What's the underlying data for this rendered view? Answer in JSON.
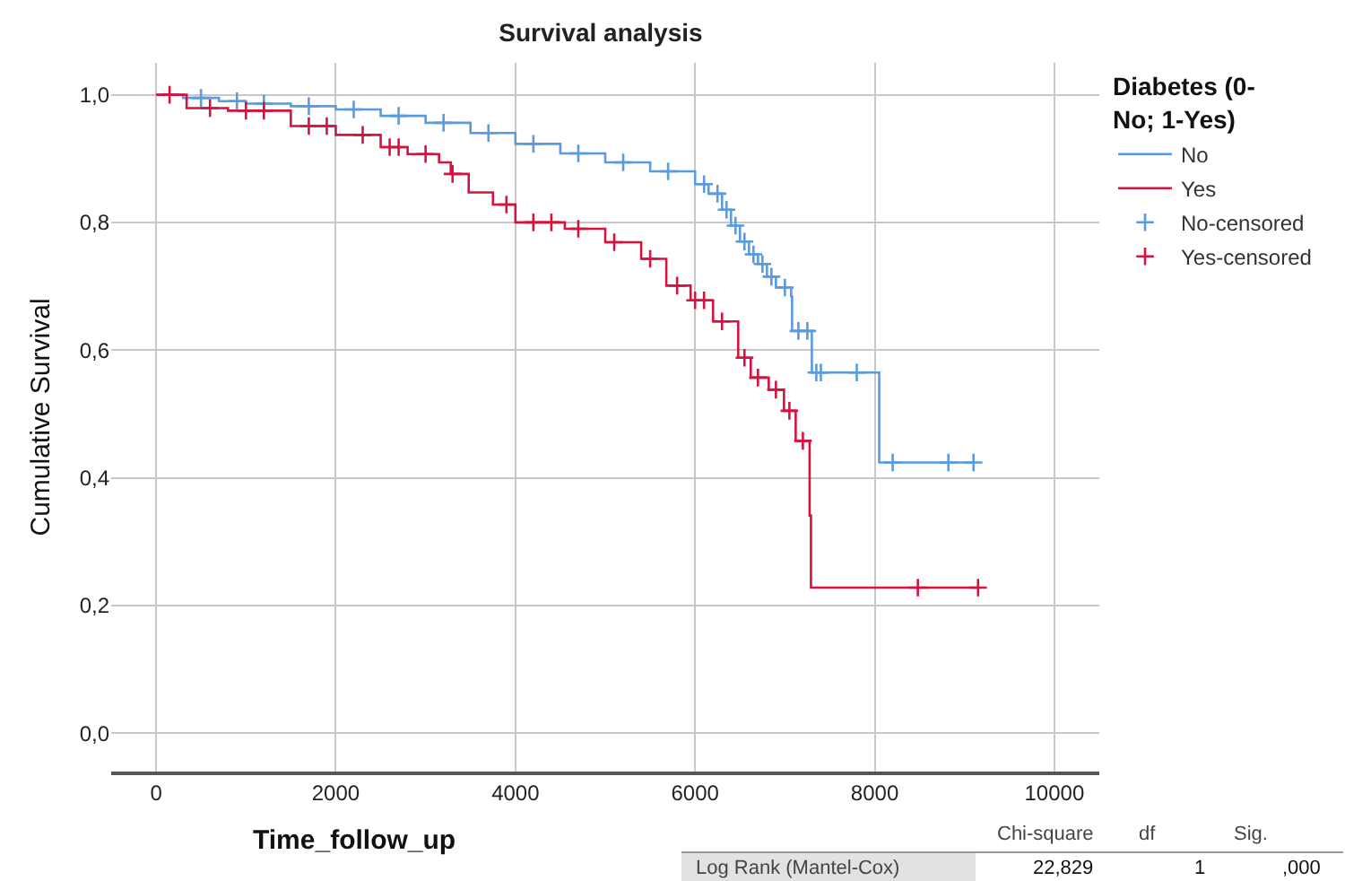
{
  "chart_data": {
    "type": "step",
    "title": "Survival analysis",
    "xlabel": "Time_follow_up",
    "ylabel": "Cumulative Survival",
    "legend_title": "Diabetes (0-No; 1-Yes)",
    "xlim": [
      -500,
      10500
    ],
    "xticks": [
      0,
      2000,
      4000,
      6000,
      8000,
      10000
    ],
    "ylim": [
      -0.06,
      1.05
    ],
    "yticks": [
      {
        "value": 0.0,
        "label": "0,0"
      },
      {
        "value": 0.2,
        "label": "0,2"
      },
      {
        "value": 0.4,
        "label": "0,4"
      },
      {
        "value": 0.6,
        "label": "0,6"
      },
      {
        "value": 0.8,
        "label": "0,8"
      },
      {
        "value": 1.0,
        "label": "1,0"
      }
    ],
    "grid": true,
    "legend": "top right",
    "series": [
      {
        "name": "No",
        "color": "#5a9bdf",
        "marker": "none",
        "x": [
          0,
          300,
          700,
          1000,
          1500,
          2000,
          2500,
          3000,
          3500,
          4000,
          4500,
          5000,
          5500,
          6000,
          6150,
          6300,
          6400,
          6500,
          6600,
          6700,
          6800,
          6900,
          7070,
          7080,
          7300,
          8050,
          9100
        ],
        "values": [
          1.0,
          0.995,
          0.99,
          0.986,
          0.982,
          0.977,
          0.967,
          0.956,
          0.94,
          0.923,
          0.908,
          0.894,
          0.88,
          0.86,
          0.845,
          0.82,
          0.795,
          0.77,
          0.75,
          0.735,
          0.715,
          0.698,
          0.684,
          0.63,
          0.565,
          0.424,
          0.424
        ]
      },
      {
        "name": "Yes",
        "color": "#d6133f",
        "marker": "none",
        "x": [
          0,
          200,
          340,
          800,
          1500,
          2000,
          2500,
          2800,
          3150,
          3280,
          3480,
          3750,
          4000,
          4550,
          5000,
          5400,
          5680,
          5950,
          6200,
          6480,
          6620,
          6820,
          6990,
          7120,
          7275,
          7290,
          9150
        ],
        "values": [
          1.0,
          1.0,
          0.979,
          0.975,
          0.951,
          0.937,
          0.918,
          0.907,
          0.894,
          0.876,
          0.847,
          0.828,
          0.8,
          0.79,
          0.769,
          0.743,
          0.701,
          0.678,
          0.645,
          0.588,
          0.557,
          0.538,
          0.505,
          0.458,
          0.341,
          0.228,
          0.228
        ]
      },
      {
        "name": "No-censored",
        "type": "scatter",
        "color": "#5a9bdf",
        "marker": "cross",
        "x": [
          500,
          900,
          1200,
          1700,
          2200,
          2700,
          3200,
          3700,
          4200,
          4700,
          5200,
          5700,
          6100,
          6250,
          6350,
          6450,
          6550,
          6650,
          6750,
          6850,
          7000,
          7150,
          7250,
          7350,
          7400,
          7800,
          8200,
          8820,
          9100
        ],
        "values": [
          0.995,
          0.99,
          0.986,
          0.982,
          0.977,
          0.967,
          0.956,
          0.94,
          0.923,
          0.908,
          0.894,
          0.88,
          0.86,
          0.845,
          0.82,
          0.795,
          0.77,
          0.75,
          0.735,
          0.715,
          0.698,
          0.63,
          0.63,
          0.565,
          0.565,
          0.565,
          0.424,
          0.424,
          0.424
        ]
      },
      {
        "name": "Yes-censored",
        "type": "scatter",
        "color": "#d6133f",
        "marker": "cross",
        "x": [
          150,
          600,
          1000,
          1200,
          1700,
          1900,
          2300,
          2600,
          2700,
          3000,
          3300,
          3900,
          4200,
          4400,
          4700,
          5100,
          5500,
          5800,
          6000,
          6100,
          6300,
          6550,
          6700,
          6900,
          7050,
          7200,
          8480,
          9150
        ],
        "values": [
          1.0,
          0.979,
          0.975,
          0.975,
          0.951,
          0.951,
          0.937,
          0.918,
          0.918,
          0.907,
          0.876,
          0.828,
          0.8,
          0.8,
          0.79,
          0.769,
          0.743,
          0.701,
          0.678,
          0.678,
          0.645,
          0.588,
          0.557,
          0.538,
          0.505,
          0.458,
          0.228,
          0.228
        ]
      }
    ],
    "annotations": [
      "Chi-square",
      "df",
      "Sig.",
      "Log Rank (Mantel-Cox)",
      "22,829",
      "1",
      ",000"
    ]
  }
}
